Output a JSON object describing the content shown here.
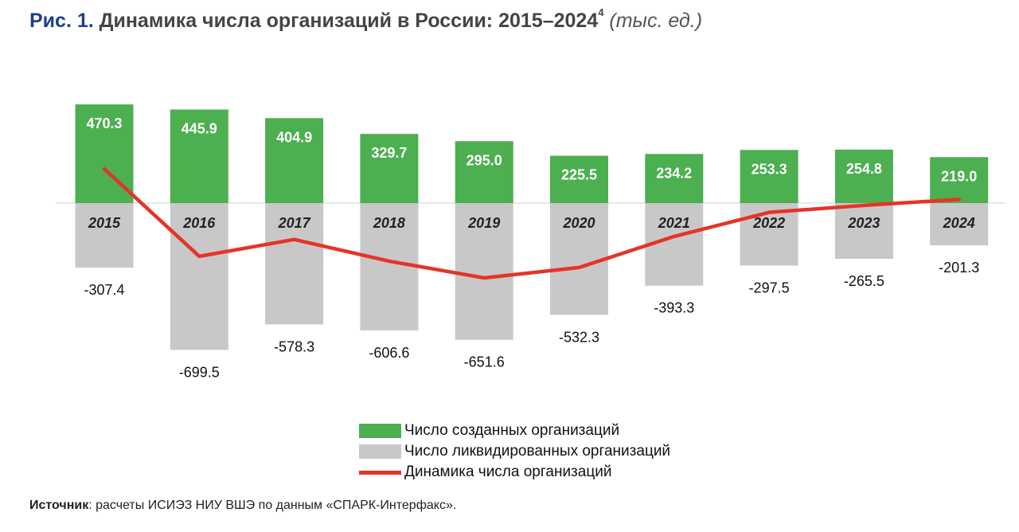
{
  "title": {
    "fig": "Рис. 1.",
    "text": " Динамика числа организаций в России: 2015–2024",
    "footnote": "4",
    "unit": " (тыс. ед.)"
  },
  "chart_data": {
    "type": "bar",
    "categories": [
      "2015",
      "2016",
      "2017",
      "2018",
      "2019",
      "2020",
      "2021",
      "2022",
      "2023",
      "2024"
    ],
    "series": [
      {
        "name": "Число созданных организаций",
        "values": [
          470.3,
          445.9,
          404.9,
          329.7,
          295.0,
          225.5,
          234.2,
          253.3,
          254.8,
          219.0
        ],
        "color": "#4caf50"
      },
      {
        "name": "Число ликвидированных организаций",
        "values": [
          -307.4,
          -699.5,
          -578.3,
          -606.6,
          -651.6,
          -532.3,
          -393.3,
          -297.5,
          -265.5,
          -201.3
        ],
        "color": "#c8c8c8"
      },
      {
        "name": "Динамика числа организаций",
        "type": "line",
        "values": [
          162.9,
          -253.6,
          -173.4,
          -276.9,
          -356.6,
          -306.8,
          -159.1,
          -44.2,
          -10.7,
          17.7
        ],
        "color": "#e53427"
      }
    ],
    "legend_position": "bottom-center",
    "grid": false
  },
  "legend": [
    {
      "label": "Число созданных организаций",
      "color": "#4caf50",
      "kind": "bar"
    },
    {
      "label": "Число ликвидированных организаций",
      "color": "#c8c8c8",
      "kind": "bar"
    },
    {
      "label": "Динамика числа организаций",
      "color": "#e53427",
      "kind": "line"
    }
  ],
  "source": {
    "label": "Источник",
    "text": ": расчеты ИСИЭЗ НИУ ВШЭ по данным «СПАРК-Интерфакс»."
  }
}
